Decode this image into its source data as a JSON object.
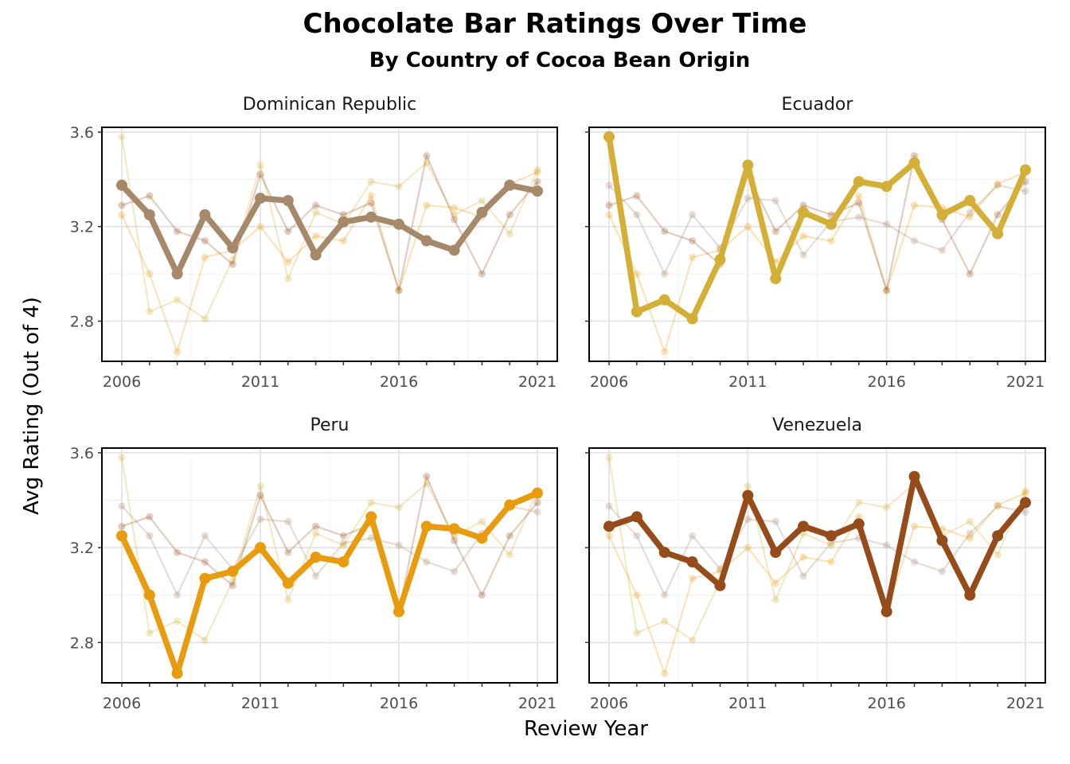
{
  "chart_data": {
    "type": "line",
    "title": "Chocolate Bar Ratings Over Time",
    "subtitle": "By Country of Cocoa Bean Origin",
    "xlabel": "Review Year",
    "ylabel": "Avg Rating (Out of 4)",
    "x": [
      2006,
      2007,
      2008,
      2009,
      2010,
      2011,
      2012,
      2013,
      2014,
      2015,
      2016,
      2017,
      2018,
      2019,
      2020,
      2021
    ],
    "xticks": [
      2006,
      2011,
      2016,
      2021
    ],
    "xlim": [
      2006,
      2021
    ],
    "yticks": [
      2.8,
      3.2,
      3.6
    ],
    "ylim": [
      2.63,
      3.62
    ],
    "grid": true,
    "facets": [
      "Dominican Republic",
      "Ecuador",
      "Peru",
      "Venezuela"
    ],
    "series": [
      {
        "name": "Dominican Republic",
        "color": "#A6896B",
        "values": [
          3.375,
          3.25,
          3.0,
          3.25,
          3.11,
          3.32,
          3.31,
          3.08,
          3.22,
          3.24,
          3.21,
          3.14,
          3.1,
          3.26,
          3.375,
          3.35
        ]
      },
      {
        "name": "Ecuador",
        "color": "#D4AF37",
        "values": [
          3.58,
          2.84,
          2.89,
          2.81,
          3.06,
          3.46,
          2.98,
          3.26,
          3.21,
          3.39,
          3.37,
          3.47,
          3.25,
          3.31,
          3.17,
          3.44
        ]
      },
      {
        "name": "Peru",
        "color": "#E89B0C",
        "values": [
          3.25,
          3.0,
          2.67,
          3.07,
          3.1,
          3.2,
          3.05,
          3.16,
          3.14,
          3.33,
          2.93,
          3.29,
          3.28,
          3.24,
          3.38,
          3.43
        ]
      },
      {
        "name": "Venezuela",
        "color": "#964B1A",
        "values": [
          3.29,
          3.33,
          3.18,
          3.14,
          3.04,
          3.42,
          3.18,
          3.29,
          3.25,
          3.3,
          2.93,
          3.5,
          3.23,
          3.0,
          3.25,
          3.39
        ]
      }
    ]
  }
}
